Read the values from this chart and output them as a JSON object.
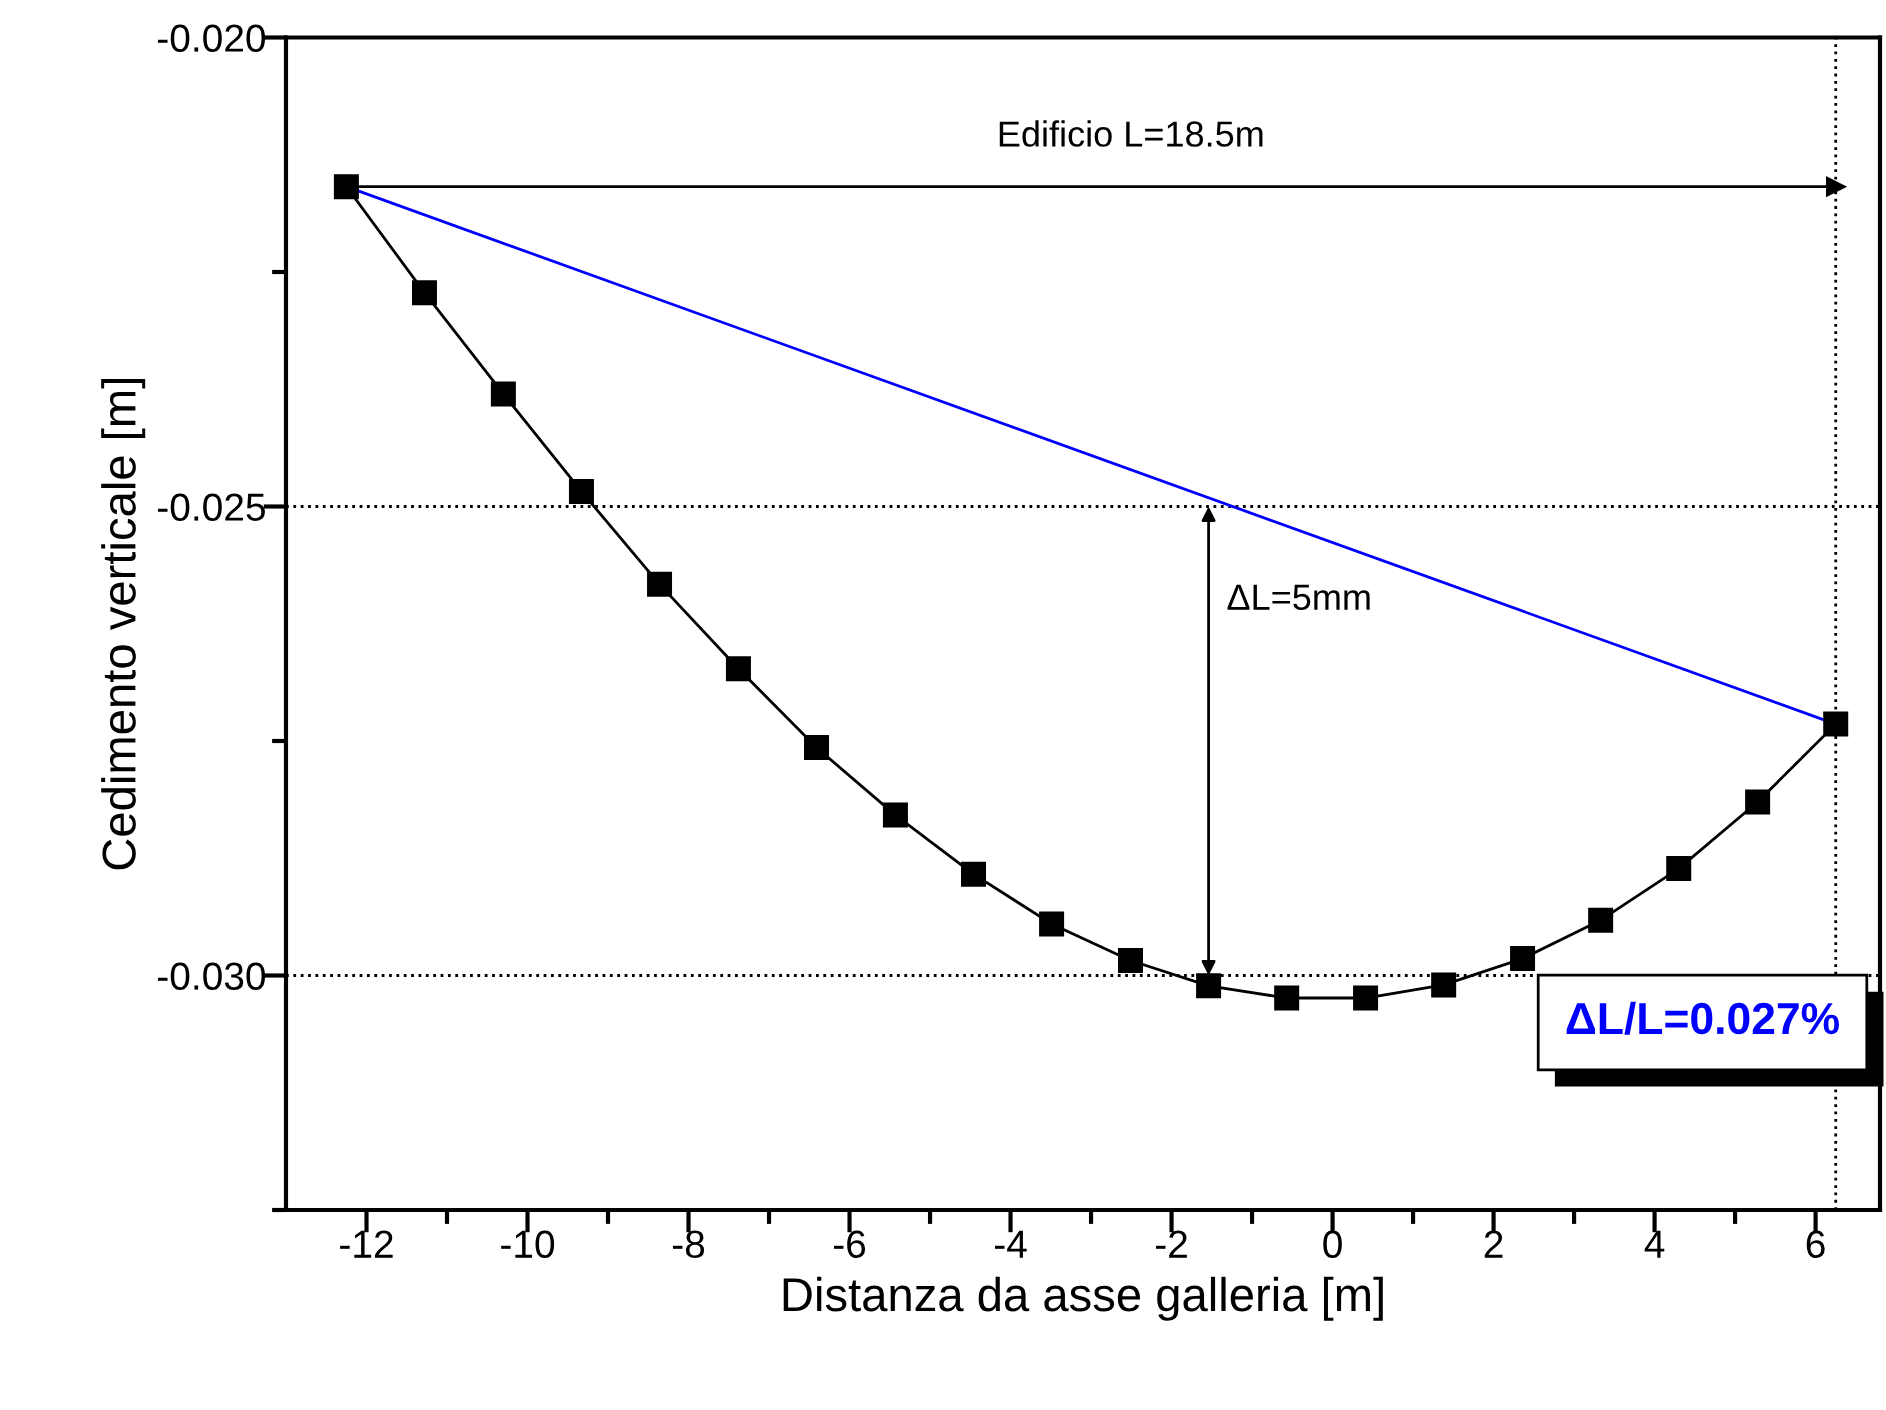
{
  "chart_data": {
    "type": "line",
    "xlabel": "Distanza da asse galleria [m]",
    "ylabel": "Cedimento verticale [m]",
    "xlim": [
      -13,
      6.8
    ],
    "ylim": [
      -0.0325,
      -0.02
    ],
    "xticks": [
      -12,
      {
        "value": -11,
        "label": null
      },
      -10,
      {
        "value": -9,
        "label": null
      },
      -8,
      {
        "value": -7,
        "label": null
      },
      -6,
      {
        "value": -5,
        "label": null
      },
      -4,
      {
        "value": -3,
        "label": null
      },
      -2,
      {
        "value": -1,
        "label": null
      },
      0,
      {
        "value": 1,
        "label": null
      },
      2,
      {
        "value": 3,
        "label": null
      },
      4,
      {
        "value": 5,
        "label": null
      },
      6
    ],
    "yticks": [
      {
        "value": -0.0325,
        "label": null
      },
      {
        "value": -0.03,
        "label": "-0.030"
      },
      {
        "value": -0.0275,
        "label": null
      },
      {
        "value": -0.025,
        "label": "-0.025"
      },
      {
        "value": -0.0225,
        "label": null
      },
      {
        "value": -0.02,
        "label": "-0.020"
      }
    ],
    "grid": false,
    "legend": false,
    "series": [
      {
        "color": "#000000",
        "marker": "square",
        "x": [
          -12.25,
          -11.28,
          -10.3,
          -9.33,
          -8.36,
          -7.38,
          -6.41,
          -5.43,
          -4.46,
          -3.49,
          -2.51,
          -1.54,
          -0.57,
          0.41,
          1.38,
          2.36,
          3.33,
          4.3,
          5.28,
          6.25
        ],
        "values": [
          -0.02159,
          -0.02272,
          -0.0238,
          -0.02484,
          -0.02583,
          -0.02673,
          -0.02757,
          -0.02829,
          -0.02892,
          -0.02945,
          -0.02984,
          -0.03011,
          -0.03024,
          -0.03024,
          -0.0301,
          -0.02982,
          -0.02941,
          -0.02886,
          -0.02815,
          -0.02732
        ]
      },
      {
        "color": "#0000ff",
        "marker": "none",
        "x": [
          -12.25,
          6.25
        ],
        "values": [
          -0.02159,
          -0.02732
        ]
      },
      {
        "color": "#000000",
        "marker": "triangle",
        "x": [
          -12.25,
          6.25
        ],
        "values": [
          -0.02159,
          -0.02159
        ]
      }
    ],
    "ref_lines": [
      {
        "axis": "y",
        "value": -0.025,
        "line_style": "dotted",
        "color": "#000000"
      },
      {
        "axis": "y",
        "value": -0.03,
        "line_style": "dotted",
        "color": "#000000"
      },
      {
        "axis": "x",
        "value": 6.25,
        "line_style": "dotted",
        "color": "#000000"
      }
    ],
    "annotations": [
      "Edificio L=18.5m",
      "ΔL=5mm",
      "ΔL/L=0.027%"
    ]
  }
}
